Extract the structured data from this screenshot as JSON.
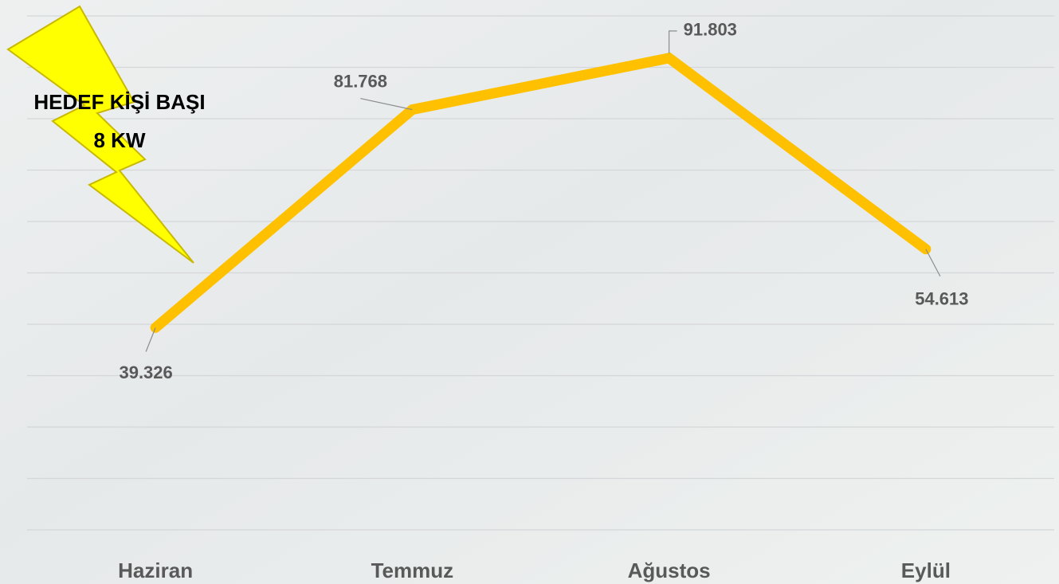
{
  "chart_data": {
    "type": "line",
    "categories": [
      "Haziran",
      "Temmuz",
      "Ağustos",
      "Eylül"
    ],
    "series": [
      {
        "color": "#ffc000",
        "values": [
          39.326,
          81.768,
          91.803,
          54.613
        ]
      }
    ],
    "ylim": [
      0,
      100
    ],
    "yticks": [
      0,
      10,
      20,
      30,
      40,
      50,
      60,
      70,
      80,
      90,
      100
    ],
    "grid": true,
    "annotations": [
      "HEDEF KİŞİ BAŞI",
      "8 KW"
    ]
  }
}
